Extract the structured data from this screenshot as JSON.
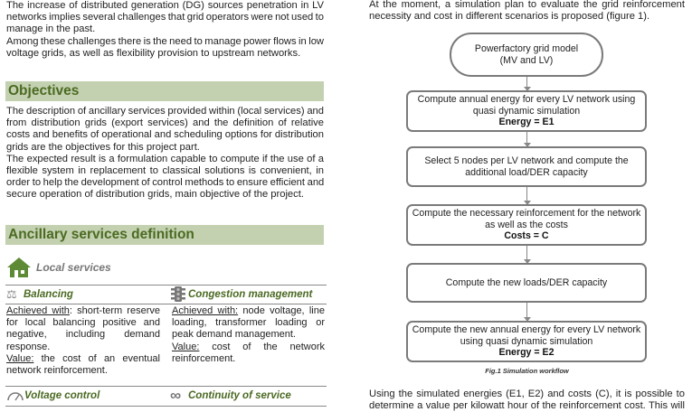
{
  "left": {
    "intro": [
      "The increase of distributed generation (DG) sources penetration in LV",
      "networks implies several challenges that grid operators were not used to",
      "manage in the past.",
      "Among these challenges there is the need to manage power flows in low",
      "voltage grids, as well as flexibility provision to upstream networks."
    ],
    "objectives_title": "Objectives",
    "objectives": [
      "The description of ancillary services provided within (local services) and",
      "from distribution grids (export services) and the definition of relative",
      "costs and benefits of operational and scheduling options for distribution",
      "grids are the objectives for this project part.",
      "The expected result is a formulation capable to compute if the use of a",
      "flexible system in replacement to classical solutions is convenient, in",
      "order to help the development of control methods to ensure efficient and",
      "secure operation of distribution grids, main objective of the project."
    ],
    "ancillary_title": "Ancillary services definition",
    "local_services": "Local services",
    "balancing": {
      "title": "Balancing",
      "achieved_label": "Achieved with",
      "achieved": [
        ": short-term reserve",
        "for local balancing positive and",
        "negative, including demand",
        "response."
      ],
      "value_label": "Value:",
      "value": [
        " the cost of an eventual",
        "network reinforcement."
      ]
    },
    "congestion": {
      "title": "Congestion management",
      "achieved_label": "Achieved with:",
      "achieved": [
        " node voltage, line",
        "loading, transformer loading or",
        "peak demand management."
      ],
      "value_label": "Value:",
      "value": [
        " cost of the network",
        "reinforcement."
      ]
    },
    "voltage_control": "Voltage control",
    "continuity": "Continuity of service"
  },
  "right": {
    "intro": [
      "At the moment, a simulation plan to evaluate the grid reinforcement",
      "necessity and cost in different scenarios is proposed (figure 1)."
    ],
    "flow": [
      {
        "lines": [
          "Powerfactory grid model",
          "(MV and LV)"
        ],
        "bold": ""
      },
      {
        "lines": [
          "Compute annual energy for every LV network using",
          "quasi dynamic simulation"
        ],
        "bold": "Energy = E1"
      },
      {
        "lines": [
          "Select 5 nodes per LV network and compute the",
          "additional load/DER capacity"
        ],
        "bold": ""
      },
      {
        "lines": [
          "Compute the necessary reinforcement for the network",
          "as well as the costs"
        ],
        "bold": "Costs = C"
      },
      {
        "lines": [
          "Compute the new loads/DER capacity"
        ],
        "bold": ""
      },
      {
        "lines": [
          "Compute the new annual energy for every LV network",
          "using quasi dynamic simulation"
        ],
        "bold": "Energy = E2"
      }
    ],
    "caption": "Fig.1 Simulation workflow",
    "outro": [
      "Using the simulated energies (E1, E2) and costs (C), it is possible to",
      "determine a value per kilowatt hour of the reinforcement cost. This will"
    ]
  },
  "colors": {
    "header_bg": "#c3d1b0",
    "header_text": "#4b6a22",
    "icon_green": "#5f8a35",
    "box_border": "#7a7a7a"
  }
}
